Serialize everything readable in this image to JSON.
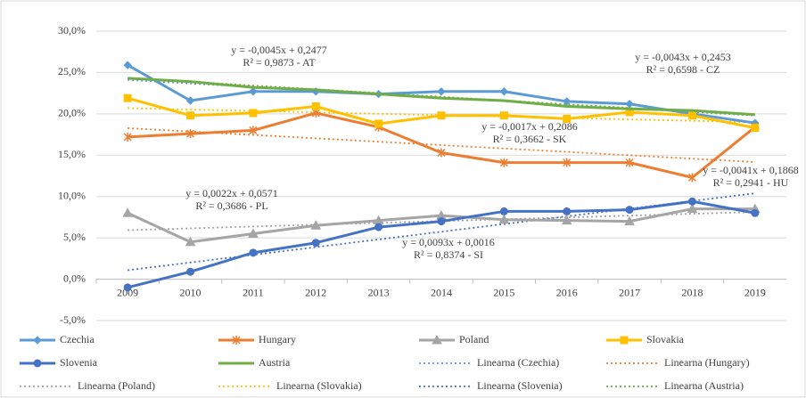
{
  "chart_data": {
    "type": "line",
    "categories": [
      "2009",
      "2010",
      "2011",
      "2012",
      "2013",
      "2014",
      "2015",
      "2016",
      "2017",
      "2018",
      "2019"
    ],
    "ylim": [
      -5,
      30
    ],
    "yticks": [
      {
        "value": -5,
        "label": "-5,0%"
      },
      {
        "value": 0,
        "label": "0,0%"
      },
      {
        "value": 5,
        "label": "5,0%"
      },
      {
        "value": 10,
        "label": "10,0%"
      },
      {
        "value": 15,
        "label": "15,0%"
      },
      {
        "value": 20,
        "label": "20,0%"
      },
      {
        "value": 25,
        "label": "25,0%"
      },
      {
        "value": 30,
        "label": "30,0%"
      }
    ],
    "grid": true,
    "series": [
      {
        "name": "Czechia",
        "color": "#5b9bd5",
        "marker": "diamond",
        "values": [
          25.9,
          21.6,
          22.7,
          22.7,
          22.4,
          22.7,
          22.7,
          21.5,
          21.2,
          20.0,
          18.9
        ]
      },
      {
        "name": "Hungary",
        "color": "#ed7d31",
        "marker": "asterisk",
        "values": [
          17.2,
          17.6,
          18.0,
          20.1,
          18.4,
          15.3,
          14.1,
          14.1,
          14.1,
          12.3,
          18.4
        ]
      },
      {
        "name": "Poland",
        "color": "#a5a5a5",
        "marker": "triangle",
        "values": [
          8.0,
          4.5,
          5.5,
          6.5,
          7.1,
          7.7,
          7.2,
          7.1,
          7.0,
          8.5,
          8.5
        ]
      },
      {
        "name": "Slovakia",
        "color": "#ffc000",
        "marker": "square",
        "values": [
          21.9,
          19.8,
          20.1,
          20.9,
          18.8,
          19.8,
          19.8,
          19.4,
          20.2,
          19.8,
          18.3
        ]
      },
      {
        "name": "Slovenia",
        "color": "#4472c4",
        "marker": "circle",
        "values": [
          -1.0,
          0.9,
          3.2,
          4.4,
          6.3,
          7.0,
          8.2,
          8.2,
          8.4,
          9.4,
          8.0
        ]
      },
      {
        "name": "Austria",
        "color": "#70ad47",
        "marker": "none",
        "values": [
          24.3,
          23.9,
          23.2,
          22.9,
          22.4,
          21.9,
          21.6,
          20.9,
          20.6,
          20.4,
          19.9
        ]
      },
      {
        "name": "Linearna (Czechia)",
        "color": "#5b9bd5",
        "style": "dotted",
        "values": [
          24.1,
          23.67,
          23.24,
          22.81,
          22.38,
          21.95,
          21.52,
          21.09,
          20.66,
          20.23,
          19.8
        ]
      },
      {
        "name": "Linearna (Hungary)",
        "color": "#ed7d31",
        "style": "dotted",
        "values": [
          18.27,
          17.86,
          17.45,
          17.04,
          16.63,
          16.22,
          15.81,
          15.4,
          14.99,
          14.58,
          14.17
        ]
      },
      {
        "name": "Linearna (Poland)",
        "color": "#a5a5a5",
        "style": "dotted",
        "values": [
          5.93,
          6.15,
          6.37,
          6.59,
          6.81,
          7.03,
          7.25,
          7.47,
          7.69,
          7.91,
          8.13
        ]
      },
      {
        "name": "Linearna (Slovakia)",
        "color": "#ffc000",
        "style": "dotted",
        "values": [
          20.69,
          20.52,
          20.35,
          20.18,
          20.01,
          19.84,
          19.67,
          19.5,
          19.33,
          19.16,
          18.99
        ]
      },
      {
        "name": "Linearna (Slovenia)",
        "color": "#4472c4",
        "style": "dotted",
        "values": [
          1.09,
          2.02,
          2.95,
          3.88,
          4.81,
          5.74,
          6.67,
          7.6,
          8.53,
          9.46,
          10.39
        ]
      },
      {
        "name": "Linearna (Austria)",
        "color": "#70ad47",
        "style": "dotted",
        "values": [
          24.32,
          23.87,
          23.42,
          22.97,
          22.52,
          22.07,
          21.62,
          21.17,
          20.72,
          20.27,
          19.82
        ]
      }
    ],
    "annotations": [
      [
        "y = -0,0045x + 0,2477",
        "R² = 0,9873 - AT"
      ],
      [
        "y = -0,0043x + 0,2453",
        "R² = 0,6598 - CZ"
      ],
      [
        "y = -0,0017x + 0,2086",
        "R² = 0,3662 - SK"
      ],
      [
        "y = -0,0041x + 0,1868",
        "R² = 0,2941 - HU"
      ],
      [
        "y = 0,0022x + 0,0571",
        "R² = 0,3686 - PL"
      ],
      [
        "y = 0,0093x + 0,0016",
        "R² = 0,8374 - SI"
      ]
    ]
  }
}
